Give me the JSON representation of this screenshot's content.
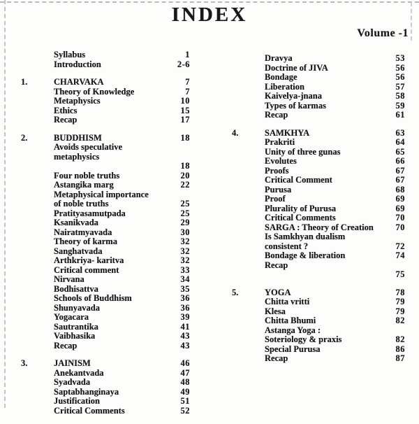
{
  "header": {
    "title": "INDEX",
    "volume": "Volume -1"
  },
  "toc": {
    "left": [
      {
        "rows": [
          {
            "num": "",
            "label": "Syllabus",
            "page": "1"
          },
          {
            "num": "",
            "label": "Introduction",
            "page": "2-6"
          }
        ]
      },
      {
        "rows": [
          {
            "num": "1.",
            "label": "CHARVAKA",
            "page": "7"
          },
          {
            "num": "",
            "label": "Theory of Knowledge",
            "page": "7"
          },
          {
            "num": "",
            "label": "Metaphysics",
            "page": "10"
          },
          {
            "num": "",
            "label": "Ethics",
            "page": "15"
          },
          {
            "num": "",
            "label": "Recap",
            "page": "17"
          }
        ]
      },
      {
        "rows": [
          {
            "num": "2.",
            "label": "BUDDHISM",
            "page": "18"
          },
          {
            "num": "",
            "label": "Avoids speculative metaphysics",
            "page": ""
          },
          {
            "num": "",
            "label": "",
            "page": "18"
          },
          {
            "num": "",
            "label": "Four noble truths",
            "page": "20"
          },
          {
            "num": "",
            "label": "Astangika marg",
            "page": "22"
          },
          {
            "num": "",
            "label": "Metaphysical importance",
            "page": ""
          },
          {
            "num": "",
            "label": "of noble truths",
            "page": "25"
          },
          {
            "num": "",
            "label": "Pratityasamutpada",
            "page": "25"
          },
          {
            "num": "",
            "label": "Ksanikvada",
            "page": "29"
          },
          {
            "num": "",
            "label": "Nairatmyavada",
            "page": "30"
          },
          {
            "num": "",
            "label": "Theory of karma",
            "page": "32"
          },
          {
            "num": "",
            "label": "Sanghatvada",
            "page": "32"
          },
          {
            "num": "",
            "label": "Arthkriya- karitva",
            "page": "32"
          },
          {
            "num": "",
            "label": "Critical comment",
            "page": "33"
          },
          {
            "num": "",
            "label": "Nirvana",
            "page": "34"
          },
          {
            "num": "",
            "label": "Bodhisattva",
            "page": "35"
          },
          {
            "num": "",
            "label": "Schools of Buddhism",
            "page": "36"
          },
          {
            "num": "",
            "label": "Shunyavada",
            "page": "36"
          },
          {
            "num": "",
            "label": "Yogacara",
            "page": "39"
          },
          {
            "num": "",
            "label": "Sautrantika",
            "page": "41"
          },
          {
            "num": "",
            "label": "Vaibhasika",
            "page": "43"
          },
          {
            "num": "",
            "label": "Recap",
            "page": "43"
          }
        ]
      },
      {
        "rows": [
          {
            "num": "3.",
            "label": "JAINISM",
            "page": "46"
          },
          {
            "num": "",
            "label": "Anekantvada",
            "page": "47"
          },
          {
            "num": "",
            "label": "Syadvada",
            "page": "48"
          },
          {
            "num": "",
            "label": "Saptabhanginaya",
            "page": "49"
          },
          {
            "num": "",
            "label": "Justification",
            "page": "51"
          },
          {
            "num": "",
            "label": "Critical Comments",
            "page": "52"
          }
        ]
      }
    ],
    "right": [
      {
        "rows": [
          {
            "num": "",
            "label": "Dravya",
            "page": "53"
          },
          {
            "num": "",
            "label": "Doctrine of JIVA",
            "page": "56"
          },
          {
            "num": "",
            "label": "Bondage",
            "page": "56"
          },
          {
            "num": "",
            "label": "Liberation",
            "page": "57"
          },
          {
            "num": "",
            "label": "Kaivelya-jnana",
            "page": "58"
          },
          {
            "num": "",
            "label": "Types of karmas",
            "page": "59"
          },
          {
            "num": "",
            "label": "Recap",
            "page": "61"
          }
        ]
      },
      {
        "rows": [
          {
            "num": "4.",
            "label": "SAMKHYA",
            "page": "63"
          },
          {
            "num": "",
            "label": "Prakriti",
            "page": "64"
          },
          {
            "num": "",
            "label": "Unity of three gunas",
            "page": "65"
          },
          {
            "num": "",
            "label": "Evolutes",
            "page": "66"
          },
          {
            "num": "",
            "label": "Proofs",
            "page": "67"
          },
          {
            "num": "",
            "label": "Critical Comment",
            "page": "67"
          },
          {
            "num": "",
            "label": "Purusa",
            "page": "68"
          },
          {
            "num": "",
            "label": "Proof",
            "page": "69"
          },
          {
            "num": "",
            "label": "Plurality of Purusa",
            "page": "69"
          },
          {
            "num": "",
            "label": "Critical Comments",
            "page": "70"
          },
          {
            "num": "",
            "label": "SARGA : Theory of Creation",
            "page": "70"
          },
          {
            "num": "",
            "label": "Is Samkhyan dualism",
            "page": ""
          },
          {
            "num": "",
            "label": "consistent ?",
            "page": "72"
          },
          {
            "num": "",
            "label": "Bondage & liberation",
            "page": "74"
          },
          {
            "num": "",
            "label": "Recap",
            "page": ""
          },
          {
            "num": "",
            "label": "",
            "page": "75"
          }
        ]
      },
      {
        "rows": [
          {
            "num": "5.",
            "label": "YOGA",
            "page": "78"
          },
          {
            "num": "",
            "label": "Chitta vritti",
            "page": "79"
          },
          {
            "num": "",
            "label": "Klesa",
            "page": "79"
          },
          {
            "num": "",
            "label": "Chitta Bhumi",
            "page": "82"
          },
          {
            "num": "",
            "label": "Astanga Yoga :",
            "page": ""
          },
          {
            "num": "",
            "label": "Soteriology & praxis",
            "page": "82"
          },
          {
            "num": "",
            "label": "Special Purusa",
            "page": "86"
          },
          {
            "num": "",
            "label": "Recap",
            "page": "87"
          }
        ]
      }
    ]
  }
}
